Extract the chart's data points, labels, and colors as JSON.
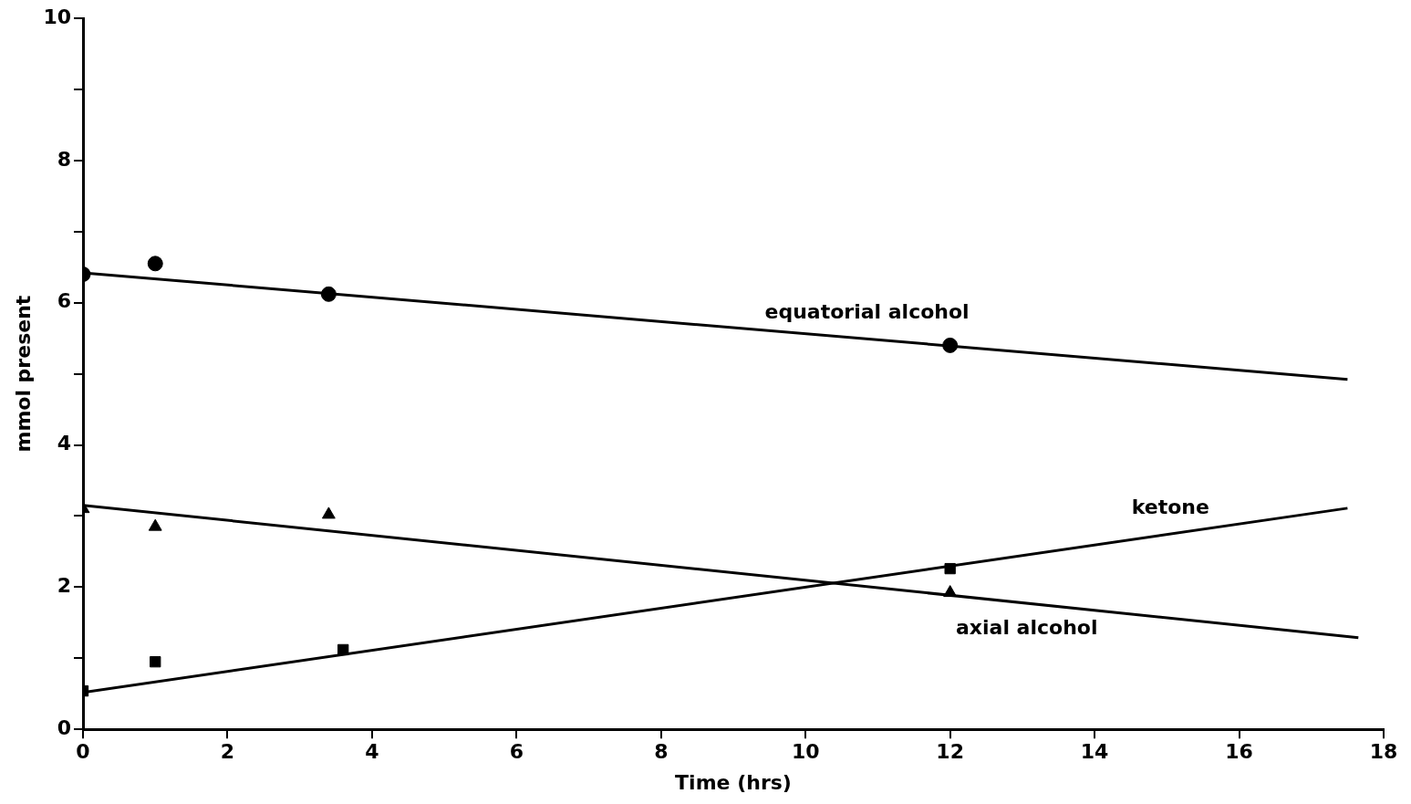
{
  "chart_data": {
    "type": "scatter",
    "xlabel": "Time (hrs)",
    "ylabel": "mmol present",
    "xlim": [
      0,
      18
    ],
    "xticks": [
      0,
      2,
      4,
      6,
      8,
      10,
      12,
      14,
      16,
      18
    ],
    "ylim": [
      0,
      10
    ],
    "yticks": [
      0,
      {
        "value": 1,
        "label": null
      },
      2,
      {
        "value": 3,
        "label": null
      },
      4,
      {
        "value": 5,
        "label": null
      },
      6,
      {
        "value": 7,
        "label": null
      },
      8,
      {
        "value": 9,
        "label": null
      },
      10
    ],
    "grid": false,
    "legend": false,
    "series": [
      {
        "type": "scatter",
        "marker": "circle",
        "color": "#000000",
        "x": [
          0,
          1,
          3.4,
          12
        ],
        "values": [
          6.4,
          6.55,
          6.12,
          5.4
        ]
      },
      {
        "type": "line",
        "name": "equatorial alcohol",
        "marker": "none",
        "color": "#000000",
        "x": [
          0,
          17.5
        ],
        "values": [
          6.42,
          4.92
        ]
      },
      {
        "type": "scatter",
        "marker": "triangle",
        "color": "#000000",
        "x": [
          0,
          1,
          3.4,
          12
        ],
        "values": [
          3.1,
          2.85,
          3.02,
          1.92
        ]
      },
      {
        "type": "line",
        "name": "axial alcohol",
        "marker": "none",
        "color": "#000000",
        "x": [
          0,
          17.65
        ],
        "values": [
          3.15,
          1.29
        ]
      },
      {
        "type": "scatter",
        "marker": "square",
        "color": "#000000",
        "x": [
          0,
          1,
          3.6,
          12
        ],
        "values": [
          0.54,
          0.95,
          1.12,
          2.26
        ]
      },
      {
        "type": "line",
        "name": "ketone",
        "marker": "none",
        "color": "#000000",
        "x": [
          0,
          17.5
        ],
        "values": [
          0.52,
          3.11
        ]
      }
    ]
  }
}
